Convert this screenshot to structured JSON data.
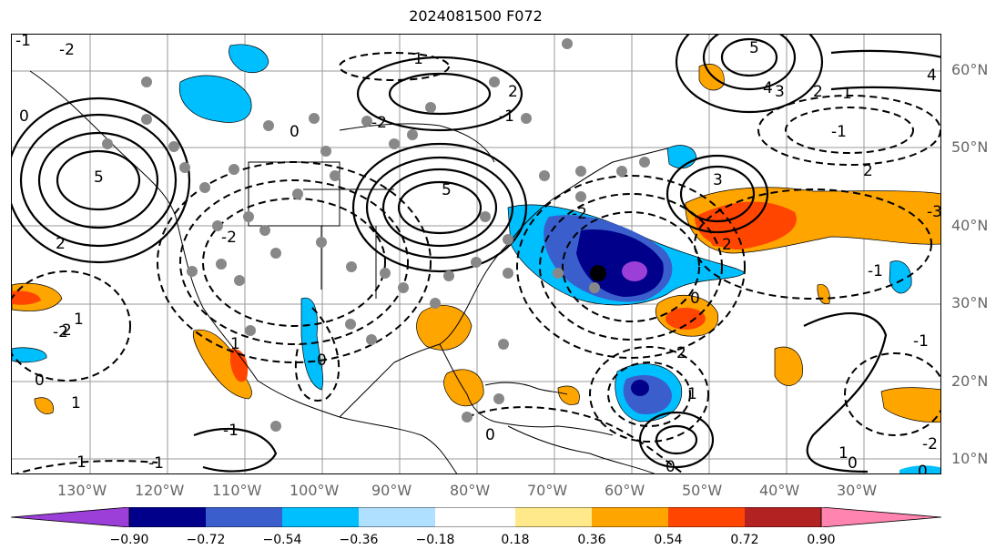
{
  "title": "2024081500 F072",
  "map": {
    "longitude_labels": [
      "130°W",
      "120°W",
      "110°W",
      "100°W",
      "90°W",
      "80°W",
      "70°W",
      "60°W",
      "50°W",
      "40°W",
      "30°W"
    ],
    "latitude_labels": [
      "60°N",
      "50°N",
      "40°N",
      "30°N",
      "20°N",
      "10°N"
    ],
    "contour_labels": [
      "-1",
      "-2",
      "0",
      "5",
      "-1",
      "2",
      "2",
      "5",
      "4",
      "3",
      "2",
      "1",
      "-1",
      "3",
      "2",
      "-3",
      "4",
      "-2",
      "0",
      "5",
      "-1",
      "-2",
      "2",
      "-1",
      "0",
      "1",
      "-2",
      "0",
      "-1",
      "-2",
      "0",
      "1",
      "1",
      "0",
      "-1",
      "0",
      "1",
      "0",
      "-2",
      "2",
      "-1",
      "1",
      "0",
      "-1",
      "2"
    ],
    "colors": {
      "dark_purple": "#7b2cbf",
      "purple": "#9b3fd8",
      "navy": "#00008b",
      "blue": "#3a5fcd",
      "sky": "#00bfff",
      "light_sky": "#b0e0ff",
      "white": "#ffffff",
      "pale_yellow": "#ffe98a",
      "orange": "#ffa500",
      "red_orange": "#ff4500",
      "dark_red": "#b22222",
      "pink": "#ff85b0",
      "gray_dot": "#888888"
    }
  },
  "colorbar": {
    "ticks": [
      "−0.90",
      "−0.72",
      "−0.54",
      "−0.36",
      "−0.18",
      "0.18",
      "0.36",
      "0.54",
      "0.72",
      "0.90"
    ],
    "colors": [
      "#9b3fd8",
      "#00008b",
      "#3a5fcd",
      "#00bfff",
      "#b0e0ff",
      "#ffffff",
      "#ffe98a",
      "#ffa500",
      "#ff4500",
      "#b22222",
      "#ff85b0"
    ]
  }
}
